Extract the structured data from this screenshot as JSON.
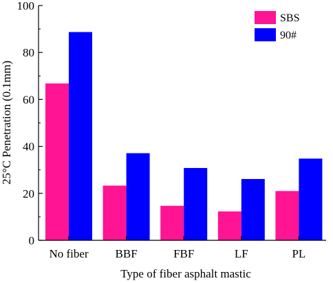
{
  "chart_data": {
    "type": "bar",
    "title": "",
    "xlabel": "Type of fiber asphalt mastic",
    "ylabel": "25°C Penetration (0.1mm)",
    "ylim": [
      0,
      100
    ],
    "yticks": [
      0,
      20,
      40,
      60,
      80,
      100
    ],
    "categories": [
      "No fiber",
      "BBF",
      "FBF",
      "LF",
      "PL"
    ],
    "series": [
      {
        "name": "SBS",
        "color": "#ff1493",
        "values": [
          66.8,
          23.3,
          14.7,
          12.3,
          21.0
        ]
      },
      {
        "name": "90#",
        "color": "#0000ff",
        "values": [
          88.7,
          37.1,
          30.8,
          26.1,
          34.8
        ]
      }
    ],
    "legend_position": "top-right",
    "grid": false
  }
}
